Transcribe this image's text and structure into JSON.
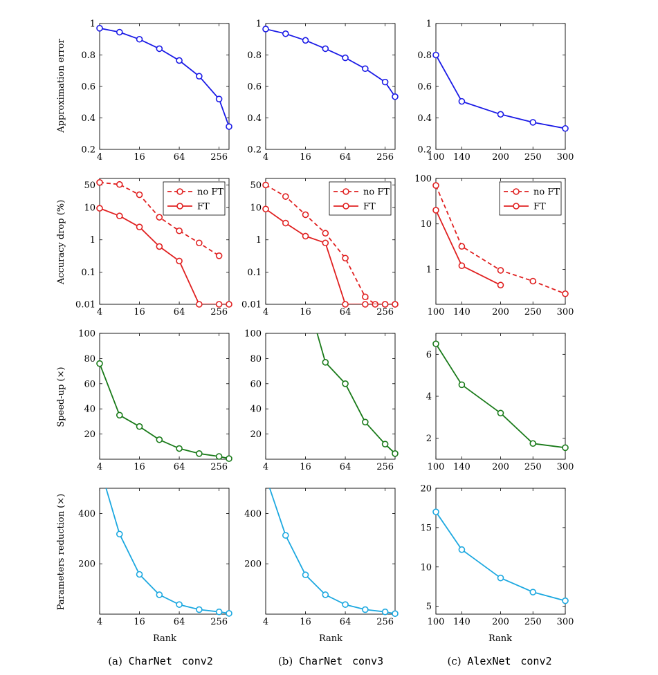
{
  "colors": {
    "error": "#1a1ae6",
    "fine": "#e02020",
    "speed": "#197a19",
    "params": "#1ca8e0"
  },
  "labels": {
    "row_ylabels": [
      "Approximation error",
      "Accuracy drop (%)",
      "Speed-up (×)",
      "Parameters reduction (×)"
    ],
    "xlabel": "Rank",
    "legend": {
      "noft": "no FT",
      "ft": "FT"
    }
  },
  "captions": [
    {
      "letter": "(a)",
      "net": "CharNet",
      "layer": "conv2"
    },
    {
      "letter": "(b)",
      "net": "CharNet",
      "layer": "conv3"
    },
    {
      "letter": "(c)",
      "net": "AlexNet",
      "layer": "conv2"
    }
  ],
  "chart_data": [
    {
      "type": "line",
      "column": "a",
      "metric": "Approximation error",
      "xscale": "log2",
      "xlim": [
        4,
        362
      ],
      "ylim": [
        0.2,
        1
      ],
      "xticks": [
        "4",
        "16",
        "64",
        "256"
      ],
      "yticks": [
        "0.2",
        "0.4",
        "0.6",
        "0.8",
        "1"
      ],
      "legend": "none",
      "series": [
        {
          "style": "solid",
          "color": "error",
          "x": [
            4,
            8,
            16,
            32,
            64,
            128,
            256,
            362
          ],
          "y": [
            0.97,
            0.945,
            0.9,
            0.84,
            0.765,
            0.665,
            0.52,
            0.345
          ]
        }
      ]
    },
    {
      "type": "line",
      "column": "b",
      "metric": "Approximation error",
      "xscale": "log2",
      "xlim": [
        4,
        362
      ],
      "ylim": [
        0.2,
        1
      ],
      "xticks": [
        "4",
        "16",
        "64",
        "256"
      ],
      "yticks": [
        "0.2",
        "0.4",
        "0.6",
        "0.8",
        "1"
      ],
      "legend": "none",
      "series": [
        {
          "style": "solid",
          "color": "error",
          "x": [
            4,
            8,
            16,
            32,
            64,
            128,
            256,
            362
          ],
          "y": [
            0.965,
            0.935,
            0.893,
            0.84,
            0.782,
            0.713,
            0.628,
            0.535
          ]
        }
      ]
    },
    {
      "type": "line",
      "column": "c",
      "metric": "Approximation error",
      "xscale": "linear",
      "xlim": [
        100,
        300
      ],
      "ylim": [
        0.2,
        1
      ],
      "xticks": [
        "100",
        "140",
        "200",
        "250",
        "300"
      ],
      "yticks": [
        "0.2",
        "0.4",
        "0.6",
        "0.8",
        "1"
      ],
      "legend": "none",
      "series": [
        {
          "style": "solid",
          "color": "error",
          "x": [
            100,
            140,
            200,
            250,
            300
          ],
          "y": [
            0.8,
            0.505,
            0.423,
            0.372,
            0.333
          ]
        }
      ]
    },
    {
      "type": "line",
      "column": "a",
      "metric": "Accuracy drop (%)",
      "xscale": "log2",
      "xlim": [
        4,
        362
      ],
      "yscale": "log",
      "ylim": [
        0.01,
        80
      ],
      "xticks": [
        "4",
        "16",
        "64",
        "256"
      ],
      "yticks": [
        "0.01",
        "0.1",
        "1",
        "10",
        "50"
      ],
      "legend": "top-right",
      "series": [
        {
          "name": "no FT",
          "style": "dashed",
          "color": "fine",
          "x": [
            4,
            8,
            16,
            32,
            64,
            128,
            256
          ],
          "y": [
            60,
            52,
            25,
            5,
            1.9,
            0.8,
            0.32
          ]
        },
        {
          "name": "FT",
          "style": "solid",
          "color": "fine",
          "x": [
            4,
            8,
            16,
            32,
            64,
            128,
            256,
            362
          ],
          "y": [
            9.5,
            5.5,
            2.5,
            0.62,
            0.22,
            0.01,
            0.01,
            0.01
          ]
        }
      ]
    },
    {
      "type": "line",
      "column": "b",
      "metric": "Accuracy drop (%)",
      "xscale": "log2",
      "xlim": [
        4,
        362
      ],
      "yscale": "log",
      "ylim": [
        0.01,
        80
      ],
      "xticks": [
        "4",
        "16",
        "64",
        "256"
      ],
      "yticks": [
        "0.01",
        "0.1",
        "1",
        "10",
        "50"
      ],
      "legend": "top-right",
      "series": [
        {
          "name": "no FT",
          "style": "dashed",
          "color": "fine",
          "x": [
            4,
            8,
            16,
            32,
            64,
            128,
            181,
            256,
            362
          ],
          "y": [
            50,
            22,
            6,
            1.6,
            0.27,
            0.017,
            0.01,
            0.01,
            0.01
          ]
        },
        {
          "name": "FT",
          "style": "solid",
          "color": "fine",
          "x": [
            4,
            8,
            16,
            32,
            64,
            128,
            256,
            362
          ],
          "y": [
            9,
            3.3,
            1.3,
            0.8,
            0.01,
            0.01,
            0.01,
            0.01
          ]
        }
      ]
    },
    {
      "type": "line",
      "column": "c",
      "metric": "Accuracy drop (%)",
      "xscale": "linear",
      "xlim": [
        100,
        300
      ],
      "yscale": "log",
      "ylim": [
        0.17,
        100
      ],
      "xticks": [
        "100",
        "140",
        "200",
        "250",
        "300"
      ],
      "yticks": [
        "1",
        "10",
        "100"
      ],
      "legend": "top-right",
      "series": [
        {
          "name": "no FT",
          "style": "dashed",
          "color": "fine",
          "x": [
            100,
            140,
            200,
            250,
            300
          ],
          "y": [
            70,
            3.2,
            0.95,
            0.55,
            0.29
          ]
        },
        {
          "name": "FT",
          "style": "solid",
          "color": "fine",
          "x": [
            100,
            140,
            200
          ],
          "y": [
            20,
            1.2,
            0.45
          ]
        }
      ]
    },
    {
      "type": "line",
      "column": "a",
      "metric": "Speed-up (×)",
      "xscale": "log2",
      "xlim": [
        4,
        362
      ],
      "ylim": [
        0,
        100
      ],
      "xticks": [
        "4",
        "16",
        "64",
        "256"
      ],
      "yticks": [
        "20",
        "40",
        "60",
        "80",
        "100"
      ],
      "legend": "none",
      "series": [
        {
          "style": "solid",
          "color": "speed",
          "x": [
            4,
            8,
            16,
            32,
            64,
            128,
            256,
            362
          ],
          "y": [
            76,
            35,
            26,
            15.5,
            8.5,
            4.5,
            2.2,
            0.5
          ]
        }
      ]
    },
    {
      "type": "line",
      "column": "b",
      "metric": "Speed-up (×)",
      "xscale": "log2",
      "xlim": [
        4,
        362
      ],
      "ylim": [
        0,
        100
      ],
      "xticks": [
        "4",
        "16",
        "64",
        "256"
      ],
      "yticks": [
        "20",
        "40",
        "60",
        "80",
        "100"
      ],
      "legend": "none",
      "series": [
        {
          "style": "solid",
          "color": "speed",
          "markers_from": 1,
          "x": [
            24,
            32,
            64,
            128,
            256,
            362
          ],
          "y": [
            100,
            77,
            60,
            29.5,
            12,
            4.5
          ]
        }
      ]
    },
    {
      "type": "line",
      "column": "c",
      "metric": "Speed-up (×)",
      "xscale": "linear",
      "xlim": [
        100,
        300
      ],
      "ylim": [
        1,
        7
      ],
      "xticks": [
        "100",
        "140",
        "200",
        "250",
        "300"
      ],
      "yticks": [
        "2",
        "4",
        "6"
      ],
      "legend": "none",
      "series": [
        {
          "style": "solid",
          "color": "speed",
          "x": [
            100,
            140,
            200,
            250,
            300
          ],
          "y": [
            6.5,
            4.55,
            3.2,
            1.75,
            1.55
          ]
        }
      ]
    },
    {
      "type": "line",
      "column": "a",
      "metric": "Parameters reduction (×)",
      "xscale": "log2",
      "xlim": [
        4,
        362
      ],
      "ylim": [
        0,
        500
      ],
      "xticks": [
        "4",
        "16",
        "64",
        "256"
      ],
      "yticks": [
        "200",
        "400"
      ],
      "legend": "none",
      "series": [
        {
          "style": "solid",
          "color": "params",
          "markers_from": 1,
          "x": [
            5,
            8,
            16,
            32,
            64,
            128,
            256,
            362
          ],
          "y": [
            500,
            318,
            158,
            77,
            38,
            18,
            9,
            3
          ]
        }
      ]
    },
    {
      "type": "line",
      "column": "b",
      "metric": "Parameters reduction (×)",
      "xscale": "log2",
      "xlim": [
        4,
        362
      ],
      "ylim": [
        0,
        500
      ],
      "xticks": [
        "4",
        "16",
        "64",
        "256"
      ],
      "yticks": [
        "200",
        "400"
      ],
      "legend": "none",
      "series": [
        {
          "style": "solid",
          "color": "params",
          "markers_from": 1,
          "x": [
            4.6,
            8,
            16,
            32,
            64,
            128,
            256,
            362
          ],
          "y": [
            500,
            313,
            156,
            77,
            38,
            18,
            9,
            2
          ]
        }
      ]
    },
    {
      "type": "line",
      "column": "c",
      "metric": "Parameters reduction (×)",
      "xscale": "linear",
      "xlim": [
        100,
        300
      ],
      "ylim": [
        4,
        20
      ],
      "xticks": [
        "100",
        "140",
        "200",
        "250",
        "300"
      ],
      "yticks": [
        "5",
        "10",
        "15",
        "20"
      ],
      "legend": "none",
      "series": [
        {
          "style": "solid",
          "color": "params",
          "x": [
            100,
            140,
            200,
            250,
            300
          ],
          "y": [
            17,
            12.2,
            8.6,
            6.8,
            5.7
          ]
        }
      ]
    }
  ]
}
